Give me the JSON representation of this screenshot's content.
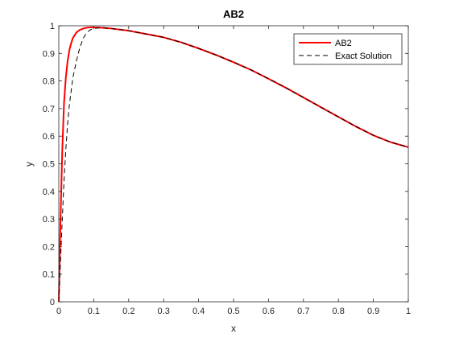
{
  "chart_data": {
    "type": "line",
    "title": "AB2",
    "xlabel": "x",
    "ylabel": "y",
    "xlim": [
      0,
      1
    ],
    "ylim": [
      0,
      1
    ],
    "grid": false,
    "legend_position": "top-right",
    "x_ticks": [
      "0",
      "0.1",
      "0.2",
      "0.3",
      "0.4",
      "0.5",
      "0.6",
      "0.7",
      "0.8",
      "0.9",
      "1"
    ],
    "y_ticks": [
      "0",
      "0.1",
      "0.2",
      "0.3",
      "0.4",
      "0.5",
      "0.6",
      "0.7",
      "0.8",
      "0.9",
      "1"
    ],
    "series": [
      {
        "name": "AB2",
        "color": "#ff0000",
        "style": "solid",
        "x": [
          0,
          0.005,
          0.01,
          0.015,
          0.02,
          0.025,
          0.03,
          0.035,
          0.04,
          0.05,
          0.06,
          0.07,
          0.08,
          0.09,
          0.1,
          0.12,
          0.15,
          0.2,
          0.25,
          0.3,
          0.35,
          0.4,
          0.45,
          0.5,
          0.55,
          0.6,
          0.65,
          0.7,
          0.75,
          0.8,
          0.85,
          0.9,
          0.95,
          1.0
        ],
        "y": [
          0,
          0.3,
          0.55,
          0.72,
          0.81,
          0.87,
          0.91,
          0.935,
          0.955,
          0.975,
          0.985,
          0.99,
          0.993,
          0.994,
          0.994,
          0.993,
          0.99,
          0.982,
          0.97,
          0.958,
          0.94,
          0.918,
          0.894,
          0.868,
          0.84,
          0.808,
          0.775,
          0.74,
          0.705,
          0.67,
          0.635,
          0.603,
          0.578,
          0.56
        ]
      },
      {
        "name": "Exact Solution",
        "color": "#000000",
        "style": "dashed",
        "x": [
          0,
          0.005,
          0.01,
          0.015,
          0.02,
          0.025,
          0.03,
          0.035,
          0.04,
          0.05,
          0.06,
          0.07,
          0.08,
          0.09,
          0.1,
          0.12,
          0.15,
          0.2,
          0.25,
          0.3,
          0.35,
          0.4,
          0.45,
          0.5,
          0.55,
          0.6,
          0.65,
          0.7,
          0.75,
          0.8,
          0.85,
          0.9,
          0.95,
          1.0
        ],
        "y": [
          0,
          0.15,
          0.3,
          0.44,
          0.55,
          0.64,
          0.71,
          0.76,
          0.81,
          0.87,
          0.92,
          0.955,
          0.975,
          0.985,
          0.99,
          0.993,
          0.99,
          0.982,
          0.97,
          0.958,
          0.94,
          0.918,
          0.894,
          0.868,
          0.84,
          0.808,
          0.775,
          0.74,
          0.705,
          0.67,
          0.635,
          0.603,
          0.578,
          0.56
        ]
      }
    ]
  }
}
